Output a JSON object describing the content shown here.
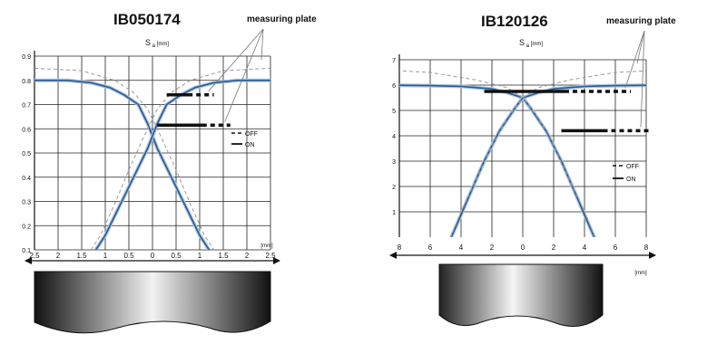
{
  "chart_data": [
    {
      "type": "line",
      "title": "IB050174",
      "ylabel_symbol": "S",
      "ylabel_sub": "a",
      "ylabel_unit": "[mm]",
      "xlabel": "[mm]",
      "plate_label": "measuring plate",
      "x_ticks": [
        "2.5",
        "2",
        "1.5",
        "1",
        "0.5",
        "0",
        "0.5",
        "1",
        "1.5",
        "2",
        "2.5"
      ],
      "y_ticks": [
        "0.9",
        "0.8",
        "0.7",
        "0.6",
        "0.5",
        "0.4",
        "0.3",
        "0.2",
        "0.1"
      ],
      "xlim": [
        -2.5,
        2.5
      ],
      "ylim": [
        0.1,
        0.9
      ],
      "legend": {
        "off": "OFF",
        "on": "ON"
      },
      "series": [
        {
          "name": "ON",
          "style": "solid",
          "x": [
            -2.5,
            -1.8,
            -1.3,
            -0.9,
            -0.6,
            -0.3,
            -0.1,
            0.1,
            0.4,
            0.7,
            1.0,
            1.2
          ],
          "y": [
            0.8,
            0.8,
            0.79,
            0.77,
            0.74,
            0.7,
            0.62,
            0.52,
            0.4,
            0.28,
            0.16,
            0.1
          ]
        },
        {
          "name": "ON",
          "style": "solid",
          "x": [
            -1.2,
            -1.0,
            -0.7,
            -0.4,
            -0.1,
            0.1,
            0.3,
            0.6,
            0.9,
            1.3,
            1.8,
            2.5
          ],
          "y": [
            0.1,
            0.16,
            0.28,
            0.4,
            0.52,
            0.62,
            0.7,
            0.74,
            0.77,
            0.79,
            0.8,
            0.8
          ]
        },
        {
          "name": "OFF",
          "style": "dashed",
          "x": [
            -2.5,
            -1.5,
            -0.8,
            -0.4,
            -0.1,
            0.2,
            0.5,
            0.8,
            1.1,
            1.3
          ],
          "y": [
            0.85,
            0.84,
            0.8,
            0.75,
            0.68,
            0.56,
            0.43,
            0.29,
            0.16,
            0.1
          ]
        },
        {
          "name": "OFF",
          "style": "dashed",
          "x": [
            -1.3,
            -1.1,
            -0.8,
            -0.5,
            -0.2,
            0.1,
            0.4,
            0.8,
            1.5,
            2.5
          ],
          "y": [
            0.1,
            0.16,
            0.29,
            0.43,
            0.56,
            0.68,
            0.75,
            0.8,
            0.84,
            0.85
          ]
        }
      ],
      "switch_points": [
        {
          "x_start": 0.3,
          "x_solid_end": 0.85,
          "x_dash_end": 1.3,
          "y": 0.74
        },
        {
          "x_start": 0.1,
          "x_solid_end": 1.15,
          "x_dash_end": 1.65,
          "y": 0.615
        }
      ]
    },
    {
      "type": "line",
      "title": "IB120126",
      "ylabel_symbol": "S",
      "ylabel_sub": "a",
      "ylabel_unit": "[mm]",
      "xlabel": "[mm]",
      "plate_label": "measuring plate",
      "x_ticks": [
        "8",
        "6",
        "4",
        "2",
        "0",
        "2",
        "4",
        "6",
        "8"
      ],
      "y_ticks": [
        "7",
        "6",
        "5",
        "4",
        "3",
        "2",
        "1"
      ],
      "xlim": [
        -8,
        8
      ],
      "ylim": [
        0,
        7
      ],
      "legend": {
        "off": "OFF",
        "on": "ON"
      },
      "series": [
        {
          "name": "ON",
          "style": "solid",
          "x": [
            -9,
            -6,
            -4,
            -2,
            -1,
            0,
            0.5,
            1.5,
            2.5,
            3.5,
            4.2,
            5.0
          ],
          "y": [
            6.0,
            5.98,
            5.95,
            5.85,
            5.7,
            5.5,
            5.1,
            4.2,
            3.0,
            1.6,
            0.6,
            -0.5
          ]
        },
        {
          "name": "ON",
          "style": "solid",
          "x": [
            -5.0,
            -4.2,
            -3.5,
            -2.5,
            -1.5,
            -0.5,
            0,
            1,
            2,
            4,
            6,
            9
          ],
          "y": [
            -0.5,
            0.6,
            1.6,
            3.0,
            4.2,
            5.1,
            5.5,
            5.7,
            5.85,
            5.95,
            5.98,
            6.0
          ]
        },
        {
          "name": "OFF",
          "style": "dashed",
          "x": [
            -9,
            -6,
            -3,
            -1,
            0,
            1,
            2,
            3,
            4,
            5
          ],
          "y": [
            6.6,
            6.5,
            6.2,
            5.9,
            5.5,
            4.7,
            3.6,
            2.3,
            1.0,
            -0.5
          ]
        },
        {
          "name": "OFF",
          "style": "dashed",
          "x": [
            -5,
            -4,
            -3,
            -2,
            -1,
            0,
            1,
            3,
            6,
            9
          ],
          "y": [
            -0.5,
            1.0,
            2.3,
            3.6,
            4.7,
            5.5,
            5.9,
            6.2,
            6.5,
            6.6
          ]
        }
      ],
      "switch_points": [
        {
          "x_start": -2.5,
          "x_solid_end": 3.0,
          "x_dash_end": 7.0,
          "y": 5.75
        },
        {
          "x_start": 2.5,
          "x_solid_end": 5.5,
          "x_dash_end": 9.0,
          "y": 4.2
        }
      ]
    }
  ]
}
